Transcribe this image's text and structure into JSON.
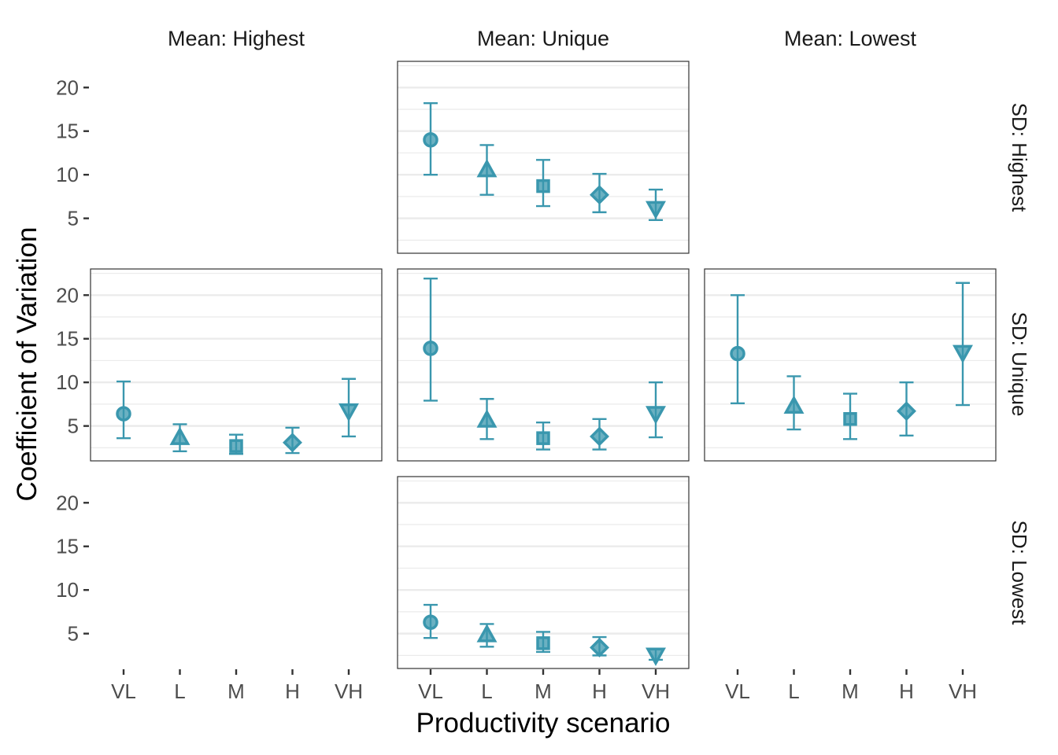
{
  "chart_data": {
    "type": "scatter",
    "facet_layout": "3x3 grid, empty panels where combination absent",
    "x_axis_title": "Productivity scenario",
    "y_axis_title": "Coefficient of Variation",
    "column_labels": [
      "Mean: Highest",
      "Mean: Unique",
      "Mean: Lowest"
    ],
    "row_labels": [
      "SD: Highest",
      "SD: Unique",
      "SD: Lowest"
    ],
    "categories": [
      "VL",
      "L",
      "M",
      "H",
      "VH"
    ],
    "shapes": [
      "circle",
      "triangle-up",
      "square",
      "diamond",
      "triangle-down"
    ],
    "y_ticks": [
      5,
      10,
      15,
      20
    ],
    "ylim": [
      1.0,
      23.0
    ],
    "grid": "horizontal major and minor lines",
    "color": "#3a97ae",
    "panels": [
      {
        "row": 0,
        "col": 1,
        "points": [
          {
            "y": 14.0,
            "lo": 10.0,
            "hi": 18.2
          },
          {
            "y": 10.5,
            "lo": 7.7,
            "hi": 13.4
          },
          {
            "y": 8.7,
            "lo": 6.4,
            "hi": 11.7
          },
          {
            "y": 7.7,
            "lo": 5.7,
            "hi": 10.1
          },
          {
            "y": 6.2,
            "lo": 4.8,
            "hi": 8.3
          }
        ]
      },
      {
        "row": 1,
        "col": 0,
        "points": [
          {
            "y": 6.4,
            "lo": 3.6,
            "hi": 10.1
          },
          {
            "y": 3.6,
            "lo": 2.1,
            "hi": 5.2
          },
          {
            "y": 2.7,
            "lo": 1.8,
            "hi": 4.0
          },
          {
            "y": 3.1,
            "lo": 1.9,
            "hi": 4.8
          },
          {
            "y": 6.8,
            "lo": 3.8,
            "hi": 10.4
          }
        ]
      },
      {
        "row": 1,
        "col": 1,
        "points": [
          {
            "y": 13.9,
            "lo": 7.9,
            "hi": 21.9
          },
          {
            "y": 5.6,
            "lo": 3.5,
            "hi": 8.1
          },
          {
            "y": 3.6,
            "lo": 2.3,
            "hi": 5.4
          },
          {
            "y": 3.8,
            "lo": 2.3,
            "hi": 5.8
          },
          {
            "y": 6.5,
            "lo": 3.7,
            "hi": 10.0
          }
        ]
      },
      {
        "row": 1,
        "col": 2,
        "points": [
          {
            "y": 13.3,
            "lo": 7.6,
            "hi": 20.0
          },
          {
            "y": 7.2,
            "lo": 4.6,
            "hi": 10.7
          },
          {
            "y": 5.8,
            "lo": 3.5,
            "hi": 8.7
          },
          {
            "y": 6.7,
            "lo": 3.9,
            "hi": 10.0
          },
          {
            "y": 13.5,
            "lo": 7.4,
            "hi": 21.4
          }
        ]
      },
      {
        "row": 2,
        "col": 1,
        "points": [
          {
            "y": 6.3,
            "lo": 4.5,
            "hi": 8.3
          },
          {
            "y": 4.8,
            "lo": 3.5,
            "hi": 6.1
          },
          {
            "y": 3.9,
            "lo": 2.9,
            "hi": 5.2
          },
          {
            "y": 3.4,
            "lo": 2.5,
            "hi": 4.6
          },
          {
            "y": 2.6,
            "lo": 2.0,
            "hi": 3.2
          }
        ]
      }
    ]
  }
}
